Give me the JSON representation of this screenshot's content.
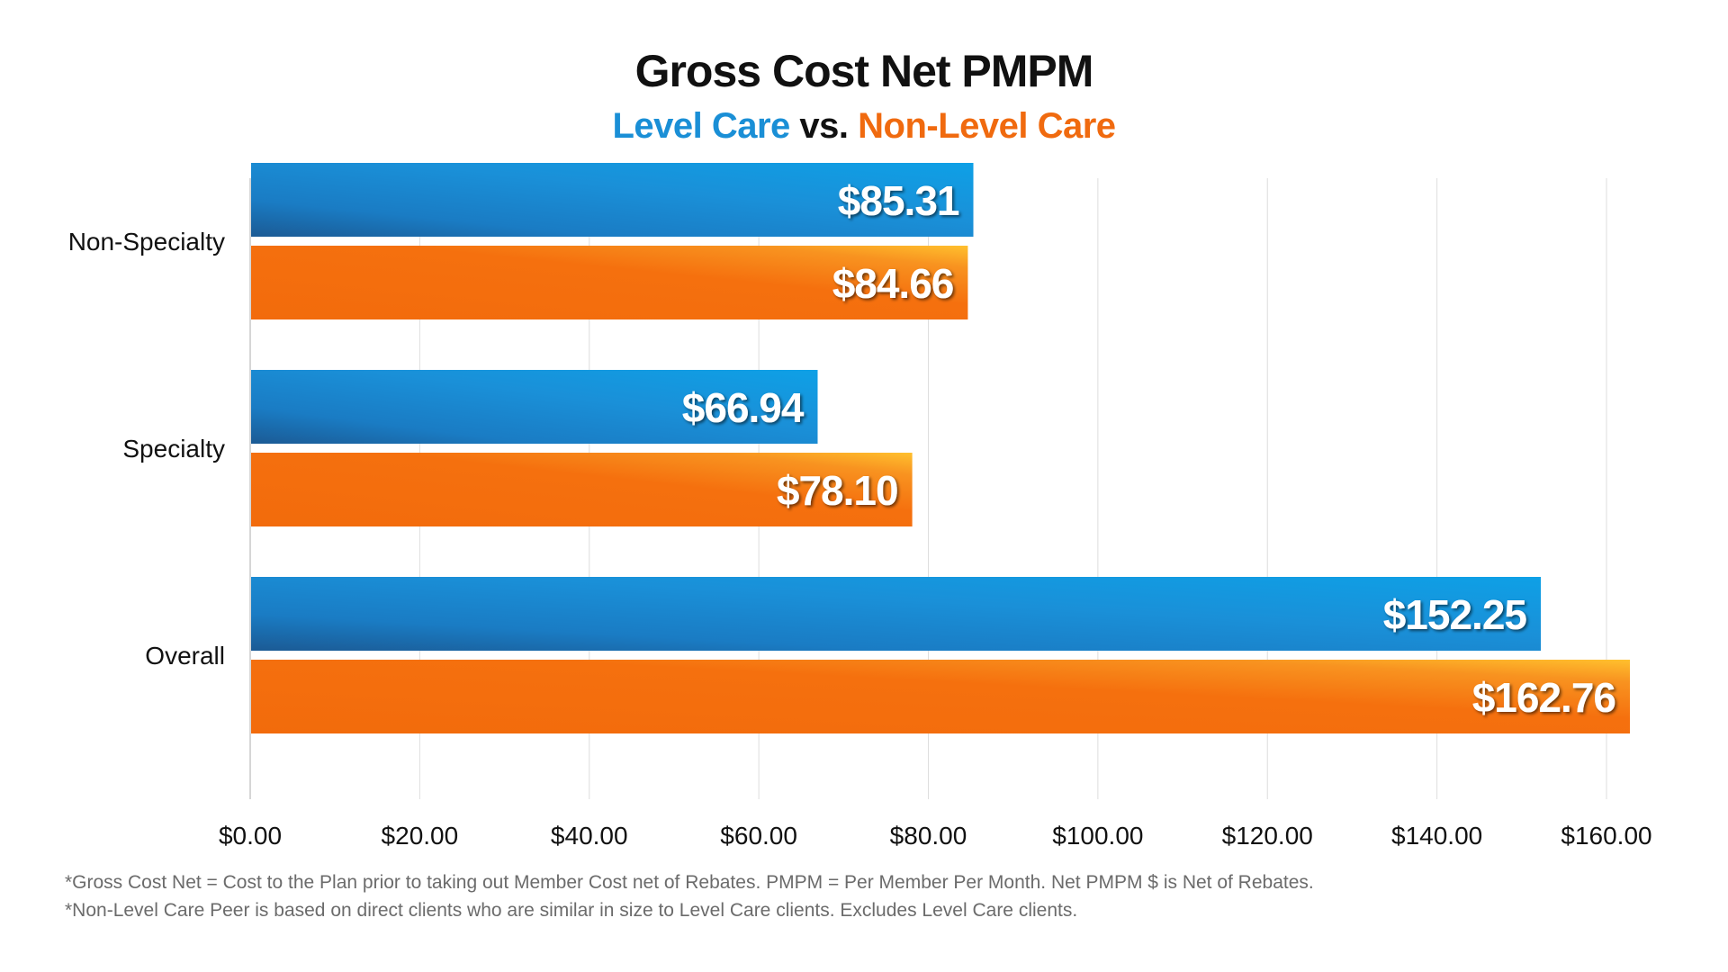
{
  "chart_data": {
    "type": "bar",
    "orientation": "horizontal",
    "title": "Gross Cost Net PMPM",
    "subtitle_parts": [
      {
        "text": "Level Care",
        "color": "#1a8fd6"
      },
      {
        "text": " vs. ",
        "color": "#111111"
      },
      {
        "text": "Non-Level Care",
        "color": "#f06a0f"
      }
    ],
    "categories": [
      "Non-Specialty",
      "Specialty",
      "Overall"
    ],
    "series": [
      {
        "values": [
          85.31,
          66.94,
          152.25
        ],
        "labels": [
          "$85.31",
          "$66.94",
          "$152.25"
        ],
        "color": "#1a8fd6"
      },
      {
        "values": [
          84.66,
          78.1,
          162.76
        ],
        "labels": [
          "$84.66",
          "$78.10",
          "$162.76"
        ],
        "color": "#f06a0f"
      }
    ],
    "xlim": [
      0,
      160
    ],
    "xticks": [
      0,
      20,
      40,
      60,
      80,
      100,
      120,
      140,
      160
    ],
    "xtick_labels": [
      "$0.00",
      "$20.00",
      "$40.00",
      "$60.00",
      "$80.00",
      "$100.00",
      "$120.00",
      "$140.00",
      "$160.00"
    ],
    "grid": "vertical",
    "data_labels": "inside-end"
  },
  "footnotes": [
    "*Gross Cost Net = Cost to the Plan prior to taking out Member Cost net of Rebates. PMPM = Per Member Per Month. Net PMPM $ is Net of Rebates.",
    "*Non-Level Care Peer is based on direct clients who are similar in size to Level Care clients. Excludes Level Care clients."
  ]
}
